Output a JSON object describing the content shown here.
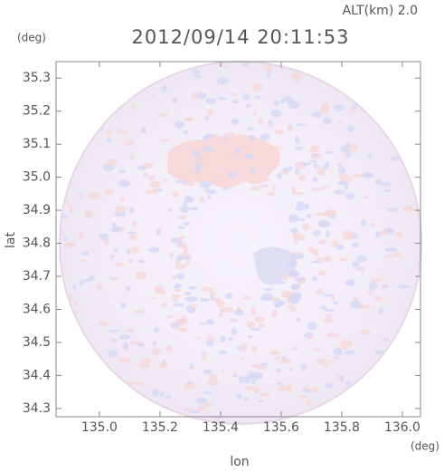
{
  "chart_data": {
    "type": "image",
    "title": "2012/09/14 20:11:53",
    "subtitle": "ALT(km) 2.0",
    "y_unit": "(deg)",
    "x_unit": "(deg)",
    "x_label": "lon",
    "y_label": "lat",
    "xlim": [
      134.857,
      136.06
    ],
    "ylim": [
      34.275,
      35.35
    ],
    "xticks": [
      {
        "value": 135.0,
        "label": "135.0"
      },
      135.2,
      135.4,
      135.6,
      135.8,
      {
        "value": 136.0,
        "label": "136.0"
      }
    ],
    "yticks": [
      34.3,
      34.4,
      34.5,
      34.6,
      34.7,
      34.8,
      34.9,
      {
        "value": 35.0,
        "label": "35.0"
      },
      35.1,
      35.2,
      35.3
    ]
  }
}
